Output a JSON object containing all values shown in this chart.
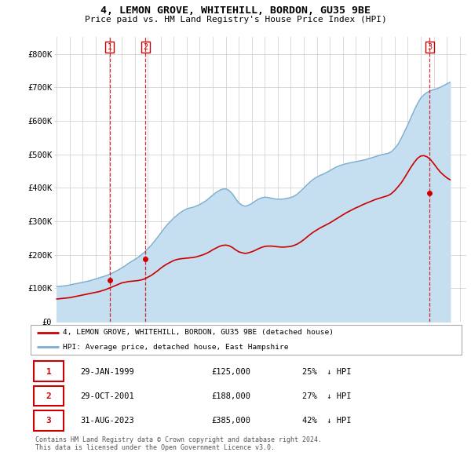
{
  "title": "4, LEMON GROVE, WHITEHILL, BORDON, GU35 9BE",
  "subtitle": "Price paid vs. HM Land Registry's House Price Index (HPI)",
  "ylim": [
    0,
    850000
  ],
  "yticks": [
    0,
    100000,
    200000,
    300000,
    400000,
    500000,
    600000,
    700000,
    800000
  ],
  "ytick_labels": [
    "£0",
    "£100K",
    "£200K",
    "£300K",
    "£400K",
    "£500K",
    "£600K",
    "£700K",
    "£800K"
  ],
  "xlim_start": 1994.8,
  "xlim_end": 2026.5,
  "xticks": [
    1995,
    1996,
    1997,
    1998,
    1999,
    2000,
    2001,
    2002,
    2003,
    2004,
    2005,
    2006,
    2007,
    2008,
    2009,
    2010,
    2011,
    2012,
    2013,
    2014,
    2015,
    2016,
    2017,
    2018,
    2019,
    2020,
    2021,
    2022,
    2023,
    2024,
    2025,
    2026
  ],
  "red_color": "#cc0000",
  "blue_color": "#7aadcf",
  "blue_fill_color": "#c5dff0",
  "vline_color": "#cc0000",
  "grid_color": "#cccccc",
  "bg_color": "#ffffff",
  "legend_label_red": "4, LEMON GROVE, WHITEHILL, BORDON, GU35 9BE (detached house)",
  "legend_label_blue": "HPI: Average price, detached house, East Hampshire",
  "transactions": [
    {
      "num": 1,
      "date": "29-JAN-1999",
      "price": 125000,
      "pct": "25%",
      "dir": "↓",
      "year": 1999.08
    },
    {
      "num": 2,
      "date": "29-OCT-2001",
      "price": 188000,
      "pct": "27%",
      "dir": "↓",
      "year": 2001.83
    },
    {
      "num": 3,
      "date": "31-AUG-2023",
      "price": 385000,
      "pct": "42%",
      "dir": "↓",
      "year": 2023.67
    }
  ],
  "footnote": "Contains HM Land Registry data © Crown copyright and database right 2024.\nThis data is licensed under the Open Government Licence v3.0.",
  "hpi_data": {
    "years": [
      1995,
      1995.25,
      1995.5,
      1995.75,
      1996,
      1996.25,
      1996.5,
      1996.75,
      1997,
      1997.25,
      1997.5,
      1997.75,
      1998,
      1998.25,
      1998.5,
      1998.75,
      1999,
      1999.25,
      1999.5,
      1999.75,
      2000,
      2000.25,
      2000.5,
      2000.75,
      2001,
      2001.25,
      2001.5,
      2001.75,
      2002,
      2002.25,
      2002.5,
      2002.75,
      2003,
      2003.25,
      2003.5,
      2003.75,
      2004,
      2004.25,
      2004.5,
      2004.75,
      2005,
      2005.25,
      2005.5,
      2005.75,
      2006,
      2006.25,
      2006.5,
      2006.75,
      2007,
      2007.25,
      2007.5,
      2007.75,
      2008,
      2008.25,
      2008.5,
      2008.75,
      2009,
      2009.25,
      2009.5,
      2009.75,
      2010,
      2010.25,
      2010.5,
      2010.75,
      2011,
      2011.25,
      2011.5,
      2011.75,
      2012,
      2012.25,
      2012.5,
      2012.75,
      2013,
      2013.25,
      2013.5,
      2013.75,
      2014,
      2014.25,
      2014.5,
      2014.75,
      2015,
      2015.25,
      2015.5,
      2015.75,
      2016,
      2016.25,
      2016.5,
      2016.75,
      2017,
      2017.25,
      2017.5,
      2017.75,
      2018,
      2018.25,
      2018.5,
      2018.75,
      2019,
      2019.25,
      2019.5,
      2019.75,
      2020,
      2020.25,
      2020.5,
      2020.75,
      2021,
      2021.25,
      2021.5,
      2021.75,
      2022,
      2022.25,
      2022.5,
      2022.75,
      2023,
      2023.25,
      2023.5,
      2023.75,
      2024,
      2024.25,
      2024.5,
      2024.75,
      2025,
      2025.25
    ],
    "values": [
      105000,
      106000,
      107000,
      108000,
      110000,
      112000,
      114000,
      116000,
      118000,
      120000,
      122000,
      125000,
      128000,
      131000,
      134000,
      137000,
      141000,
      145000,
      150000,
      155000,
      161000,
      167000,
      174000,
      180000,
      186000,
      192000,
      200000,
      208000,
      218000,
      228000,
      240000,
      252000,
      265000,
      278000,
      290000,
      300000,
      310000,
      318000,
      326000,
      332000,
      337000,
      340000,
      342000,
      346000,
      350000,
      356000,
      362000,
      370000,
      378000,
      386000,
      392000,
      396000,
      397000,
      392000,
      382000,
      368000,
      355000,
      348000,
      345000,
      348000,
      353000,
      360000,
      366000,
      370000,
      372000,
      371000,
      369000,
      367000,
      366000,
      366000,
      367000,
      369000,
      371000,
      375000,
      381000,
      390000,
      399000,
      409000,
      418000,
      426000,
      432000,
      437000,
      441000,
      446000,
      451000,
      457000,
      462000,
      466000,
      469000,
      472000,
      474000,
      476000,
      478000,
      480000,
      482000,
      484000,
      487000,
      490000,
      493000,
      496000,
      499000,
      501000,
      503000,
      508000,
      518000,
      530000,
      548000,
      568000,
      588000,
      610000,
      632000,
      652000,
      668000,
      678000,
      685000,
      690000,
      693000,
      696000,
      700000,
      705000,
      710000,
      715000
    ]
  },
  "price_paid_data": {
    "years": [
      1995,
      1995.25,
      1995.5,
      1995.75,
      1996,
      1996.25,
      1996.5,
      1996.75,
      1997,
      1997.25,
      1997.5,
      1997.75,
      1998,
      1998.25,
      1998.5,
      1998.75,
      1999,
      1999.25,
      1999.5,
      1999.75,
      2000,
      2000.25,
      2000.5,
      2000.75,
      2001,
      2001.25,
      2001.5,
      2001.75,
      2002,
      2002.25,
      2002.5,
      2002.75,
      2003,
      2003.25,
      2003.5,
      2003.75,
      2004,
      2004.25,
      2004.5,
      2004.75,
      2005,
      2005.25,
      2005.5,
      2005.75,
      2006,
      2006.25,
      2006.5,
      2006.75,
      2007,
      2007.25,
      2007.5,
      2007.75,
      2008,
      2008.25,
      2008.5,
      2008.75,
      2009,
      2009.25,
      2009.5,
      2009.75,
      2010,
      2010.25,
      2010.5,
      2010.75,
      2011,
      2011.25,
      2011.5,
      2011.75,
      2012,
      2012.25,
      2012.5,
      2012.75,
      2013,
      2013.25,
      2013.5,
      2013.75,
      2014,
      2014.25,
      2014.5,
      2014.75,
      2015,
      2015.25,
      2015.5,
      2015.75,
      2016,
      2016.25,
      2016.5,
      2016.75,
      2017,
      2017.25,
      2017.5,
      2017.75,
      2018,
      2018.25,
      2018.5,
      2018.75,
      2019,
      2019.25,
      2019.5,
      2019.75,
      2020,
      2020.25,
      2020.5,
      2020.75,
      2021,
      2021.25,
      2021.5,
      2021.75,
      2022,
      2022.25,
      2022.5,
      2022.75,
      2023,
      2023.25,
      2023.5,
      2023.75,
      2024,
      2024.25,
      2024.5,
      2024.75,
      2025,
      2025.25
    ],
    "values": [
      68000,
      69000,
      70000,
      71000,
      72000,
      74000,
      76000,
      78000,
      80000,
      82000,
      84000,
      86000,
      88000,
      90000,
      93000,
      96000,
      100000,
      104000,
      108000,
      112000,
      116000,
      118000,
      120000,
      121000,
      122000,
      123000,
      125000,
      128000,
      133000,
      138000,
      145000,
      152000,
      160000,
      167000,
      173000,
      178000,
      183000,
      186000,
      188000,
      189000,
      190000,
      191000,
      192000,
      194000,
      197000,
      200000,
      204000,
      209000,
      215000,
      220000,
      225000,
      228000,
      229000,
      227000,
      222000,
      215000,
      209000,
      206000,
      204000,
      206000,
      209000,
      213000,
      218000,
      222000,
      225000,
      226000,
      226000,
      225000,
      224000,
      223000,
      223000,
      224000,
      225000,
      228000,
      232000,
      238000,
      245000,
      253000,
      261000,
      268000,
      274000,
      280000,
      285000,
      290000,
      295000,
      301000,
      307000,
      313000,
      319000,
      325000,
      330000,
      335000,
      340000,
      344000,
      349000,
      353000,
      357000,
      361000,
      365000,
      368000,
      371000,
      374000,
      377000,
      383000,
      392000,
      403000,
      415000,
      430000,
      446000,
      462000,
      476000,
      488000,
      495000,
      496000,
      492000,
      484000,
      472000,
      459000,
      447000,
      438000,
      430000,
      424000
    ]
  }
}
